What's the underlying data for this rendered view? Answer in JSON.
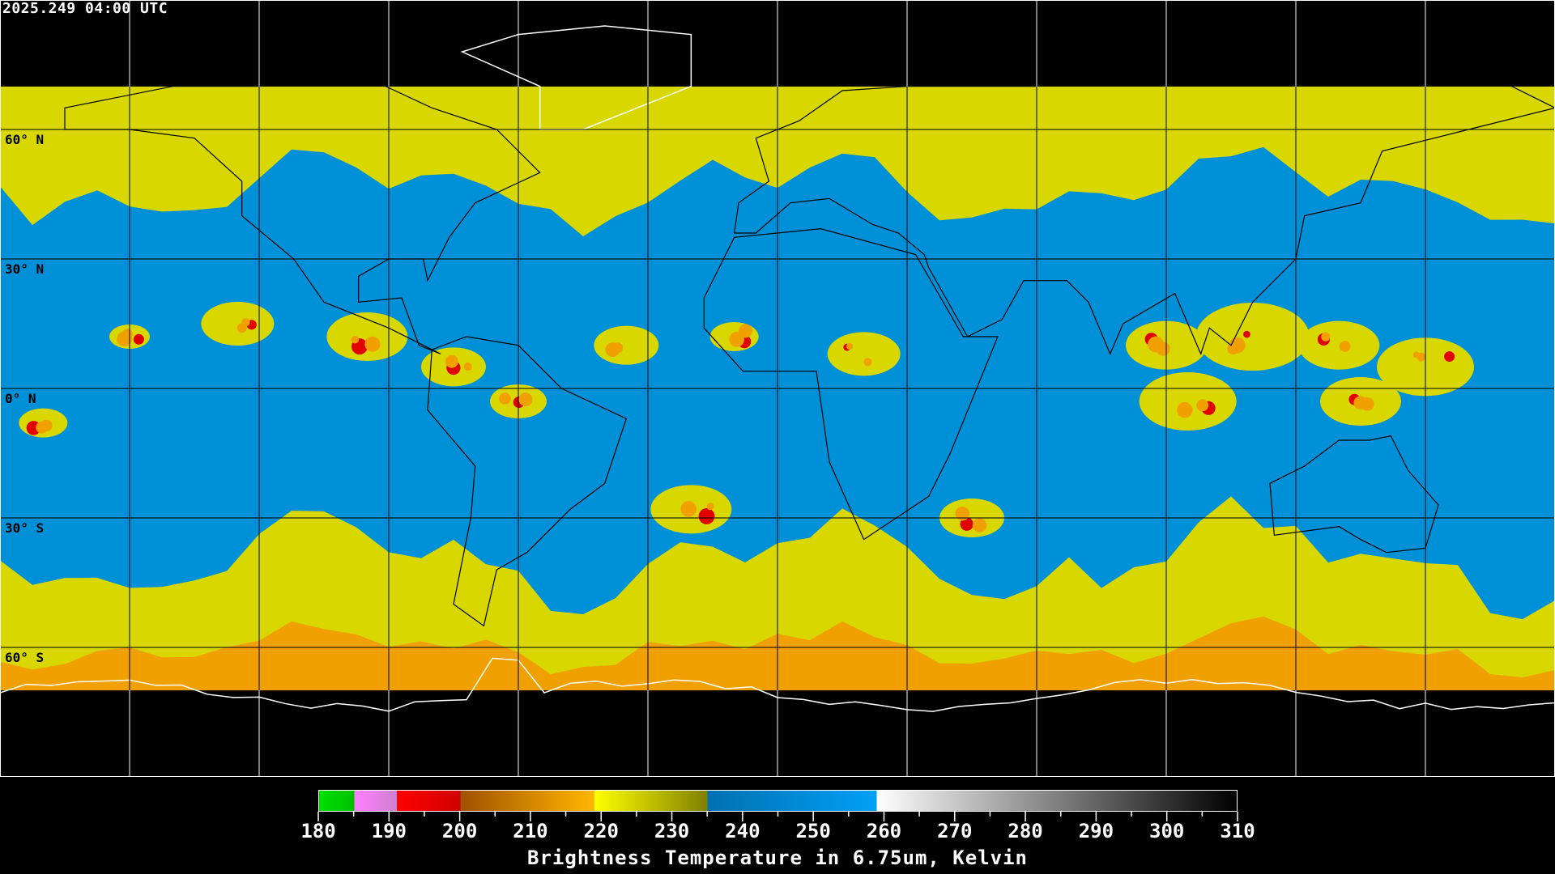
{
  "header": {
    "timestamp": "2025.249 04:00 UTC"
  },
  "map": {
    "projection": "equirectangular",
    "grid_spacing_deg": 30,
    "lat_labels": [
      "60° N",
      "30° N",
      "0° N",
      "30° S",
      "60° S"
    ],
    "colors": {
      "background": "#000000",
      "grid": "#000000",
      "grid_outside": "#ffffff",
      "dry": "#0090d8",
      "moist": "#d8d800",
      "cold": "#f0a000",
      "coldest": "#e00000"
    }
  },
  "colorbar": {
    "title": "Brightness Temperature in 6.75um, Kelvin",
    "min": 180,
    "max": 310,
    "tick_labels": [
      "180",
      "190",
      "200",
      "210",
      "220",
      "230",
      "240",
      "250",
      "260",
      "270",
      "280",
      "290",
      "300",
      "310"
    ],
    "minor_tick_step": 5,
    "segments": [
      {
        "from": 180,
        "to": 185,
        "start": "#00e000",
        "end": "#00c000"
      },
      {
        "from": 185,
        "to": 191,
        "start": "#ff80ff",
        "end": "#d080d0"
      },
      {
        "from": 191,
        "to": 200,
        "start": "#ff0000",
        "end": "#d00000"
      },
      {
        "from": 200,
        "to": 219,
        "start": "#a05000",
        "end": "#ffb800"
      },
      {
        "from": 219,
        "to": 235,
        "start": "#ffff00",
        "end": "#808000"
      },
      {
        "from": 235,
        "to": 259,
        "start": "#0070b0",
        "end": "#00a0f8"
      },
      {
        "from": 259,
        "to": 310,
        "start": "#ffffff",
        "end": "#000000"
      }
    ]
  }
}
